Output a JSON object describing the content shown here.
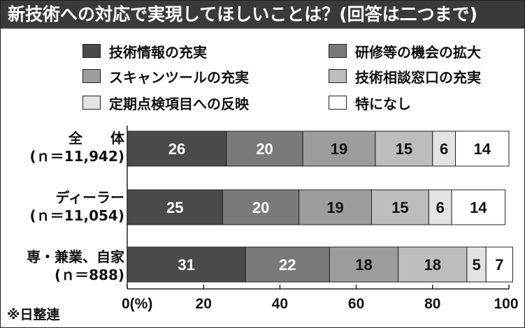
{
  "title": "新技術への対応で実現してほしいことは？(回答は二つまで)",
  "source": "※日整連",
  "colors": {
    "title_bg": "#3a3a3a",
    "title_text": "#ffffff",
    "series": [
      "#4a4a4a",
      "#7a7a7a",
      "#9d9d9d",
      "#bdbdbd",
      "#e3e3e3",
      "#ffffff"
    ],
    "segment_text_dark": "#ffffff",
    "segment_text_light": "#111111"
  },
  "chart_data": {
    "type": "bar",
    "orientation": "horizontal",
    "stacked": true,
    "xlim": [
      0,
      100
    ],
    "xticks": [
      0,
      20,
      40,
      60,
      80,
      100
    ],
    "xtick_labels": [
      "0(%)",
      "20",
      "40",
      "60",
      "80",
      "100"
    ],
    "grid": false,
    "legend_position": "top",
    "categories": [
      {
        "name": "全　　体",
        "n": "(ｎ＝11,942)"
      },
      {
        "name": "ディーラー",
        "n": "(ｎ＝11,054)"
      },
      {
        "name": "専・兼業、自家",
        "n": "(ｎ＝888)"
      }
    ],
    "series": [
      {
        "name": "技術情報の充実",
        "values": [
          26,
          25,
          31
        ]
      },
      {
        "name": "研修等の機会の拡大",
        "values": [
          20,
          20,
          22
        ]
      },
      {
        "name": "スキャンツールの充実",
        "values": [
          19,
          19,
          18
        ]
      },
      {
        "name": "技術相談窓口の充実",
        "values": [
          15,
          15,
          18
        ]
      },
      {
        "name": "定期点検項目への反映",
        "values": [
          6,
          6,
          5
        ]
      },
      {
        "name": "特になし",
        "values": [
          14,
          14,
          7
        ]
      }
    ]
  }
}
